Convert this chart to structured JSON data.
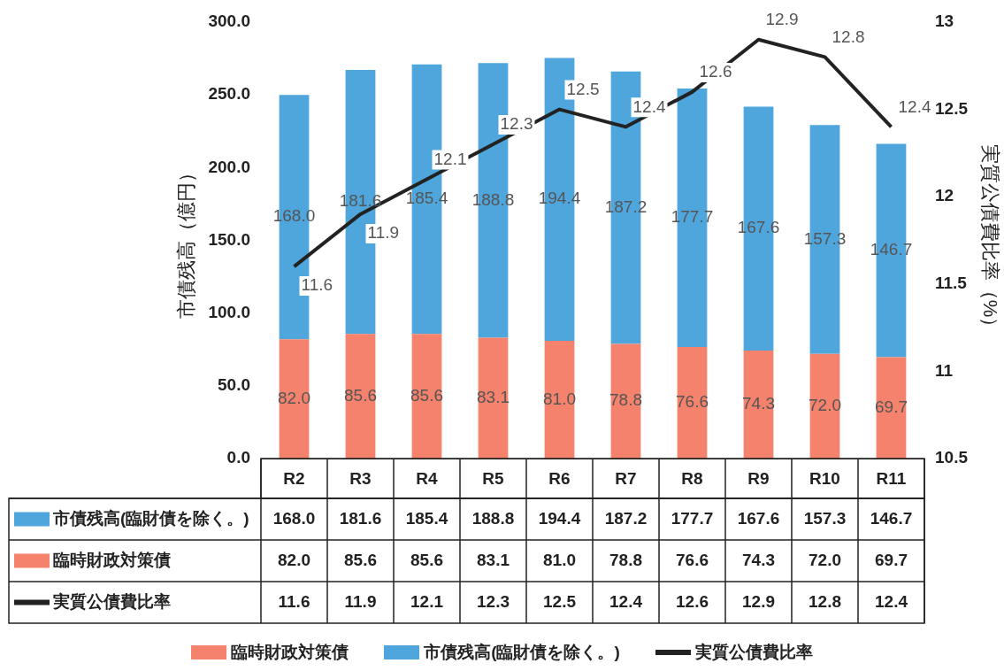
{
  "chart_data": {
    "type": "bar",
    "stacked": true,
    "categories": [
      "R2",
      "R3",
      "R4",
      "R5",
      "R6",
      "R7",
      "R8",
      "R9",
      "R10",
      "R11"
    ],
    "series": [
      {
        "name": "臨時財政対策債",
        "color": "#f4826c",
        "values": [
          82.0,
          85.6,
          85.6,
          83.1,
          81.0,
          78.8,
          76.6,
          74.3,
          72.0,
          69.7
        ],
        "value_labels": [
          "82.0",
          "85.6",
          "85.6",
          "83.1",
          "81.0",
          "78.8",
          "76.6",
          "74.3",
          "72.0",
          "69.7"
        ]
      },
      {
        "name": "市債残高(臨財債を除く。)",
        "color": "#4ea6dc",
        "values": [
          168.0,
          181.6,
          185.4,
          188.8,
          194.4,
          187.2,
          177.7,
          167.6,
          157.3,
          146.7
        ],
        "value_labels": [
          "168.0",
          "181.6",
          "185.4",
          "188.8",
          "194.4",
          "187.2",
          "177.7",
          "167.6",
          "157.3",
          "146.7"
        ]
      },
      {
        "name": "実質公債費比率",
        "type": "line",
        "axis": "y2",
        "color": "#222222",
        "values": [
          11.6,
          11.9,
          12.1,
          12.3,
          12.5,
          12.4,
          12.6,
          12.9,
          12.8,
          12.4
        ],
        "value_labels": [
          "11.6",
          "11.9",
          "12.1",
          "12.3",
          "12.5",
          "12.4",
          "12.6",
          "12.9",
          "12.8",
          "12.4"
        ]
      }
    ],
    "ylabel": "市債残高（億円）",
    "y2label": "実質公債費比率（%）",
    "ylim": [
      0,
      300
    ],
    "yticks": [
      {
        "value": 0,
        "label": "0.0"
      },
      {
        "value": 50,
        "label": "50.0"
      },
      {
        "value": 100,
        "label": "100.0"
      },
      {
        "value": 150,
        "label": "150.0"
      },
      {
        "value": 200,
        "label": "200.0"
      },
      {
        "value": 250,
        "label": "250.0"
      },
      {
        "value": 300,
        "label": "300.0"
      }
    ],
    "y2lim": [
      10.5,
      13
    ],
    "y2ticks": [
      10.5,
      11,
      11.5,
      12,
      12.5,
      13
    ],
    "legend": "bottom",
    "grid": false,
    "marker": "none",
    "line_style": "solid"
  }
}
